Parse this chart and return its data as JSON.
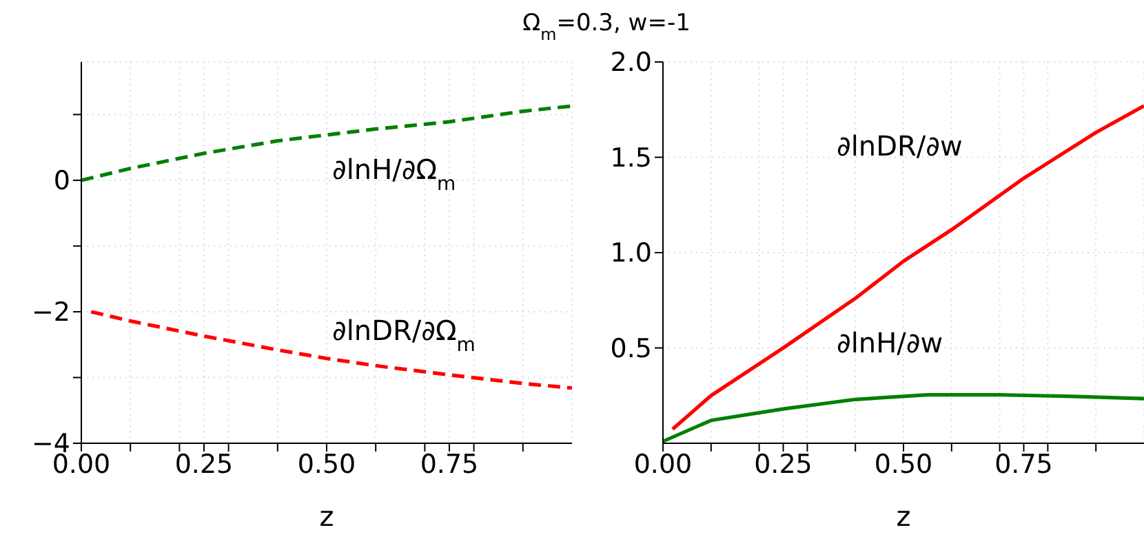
{
  "chart_data": [
    {
      "type": "line",
      "title": "Ω$_{m}$=0.3, w=-1",
      "xlabel": "z",
      "x": [
        0,
        0.1,
        0.25,
        0.4,
        0.5,
        0.6,
        0.75,
        0.9,
        1.0
      ],
      "series": [
        {
          "color": "#008000",
          "line_style": "dashed",
          "values": [
            0,
            0.18,
            0.41,
            0.6,
            0.69,
            0.78,
            0.89,
            1.05,
            1.13
          ]
        },
        {
          "color": "#ff0000",
          "line_style": "dashed",
          "x": [
            0.02,
            0.1,
            0.25,
            0.4,
            0.5,
            0.6,
            0.75,
            0.9,
            1.0
          ],
          "values": [
            -2.0,
            -2.14,
            -2.37,
            -2.58,
            -2.71,
            -2.82,
            -2.96,
            -3.09,
            -3.16
          ]
        }
      ],
      "annotations": [
        "∂lnH/∂Ω$_{m}$",
        "∂lnDR/∂Ω$_{m}$"
      ],
      "xlim": [
        0,
        1
      ],
      "xticks": [
        {
          "value": 0,
          "label": "0.00"
        },
        {
          "value": 0.1,
          "label": null
        },
        {
          "value": 0.2,
          "label": null
        },
        {
          "value": 0.25,
          "label": "0.25"
        },
        {
          "value": 0.3,
          "label": null
        },
        {
          "value": 0.4,
          "label": null
        },
        {
          "value": 0.5,
          "label": "0.50"
        },
        {
          "value": 0.6,
          "label": null
        },
        {
          "value": 0.7,
          "label": null
        },
        {
          "value": 0.75,
          "label": "0.75"
        },
        {
          "value": 0.8,
          "label": null
        },
        {
          "value": 0.9,
          "label": null
        }
      ],
      "ylim": [
        -4,
        1.8
      ],
      "yticks": [
        {
          "value": -4,
          "label": "−4"
        },
        {
          "value": -3,
          "label": null
        },
        {
          "value": -2,
          "label": "−2"
        },
        {
          "value": -1,
          "label": null
        },
        0,
        {
          "value": 1,
          "label": null
        }
      ],
      "grid": true
    },
    {
      "type": "line",
      "xlabel": "z",
      "x": [
        0.02,
        0.1,
        0.25,
        0.4,
        0.5,
        0.6,
        0.75,
        0.9,
        1.0
      ],
      "series": [
        {
          "color": "#ff0000",
          "line_style": "solid",
          "values": [
            0.074,
            0.25,
            0.5,
            0.76,
            0.955,
            1.12,
            1.39,
            1.63,
            1.77
          ]
        },
        {
          "color": "#008000",
          "line_style": "solid",
          "x": [
            0,
            0.1,
            0.25,
            0.4,
            0.55,
            0.7,
            0.85,
            1.0
          ],
          "values": [
            0.01,
            0.12,
            0.18,
            0.23,
            0.254,
            0.254,
            0.246,
            0.234
          ]
        }
      ],
      "annotations": [
        "∂lnDR/∂w",
        "∂lnH/∂w"
      ],
      "xlim": [
        0,
        1
      ],
      "xticks": [
        {
          "value": 0,
          "label": "0.00"
        },
        {
          "value": 0.1,
          "label": null
        },
        {
          "value": 0.2,
          "label": null
        },
        {
          "value": 0.25,
          "label": "0.25"
        },
        {
          "value": 0.3,
          "label": null
        },
        {
          "value": 0.4,
          "label": null
        },
        {
          "value": 0.5,
          "label": "0.50"
        },
        {
          "value": 0.6,
          "label": null
        },
        {
          "value": 0.7,
          "label": null
        },
        {
          "value": 0.75,
          "label": "0.75"
        },
        {
          "value": 0.8,
          "label": null
        },
        {
          "value": 0.9,
          "label": null
        }
      ],
      "ylim": [
        0,
        2
      ],
      "yticks": [
        0.5,
        {
          "value": 1,
          "label": "1.0"
        },
        1.5,
        {
          "value": 2,
          "label": "2.0"
        }
      ],
      "grid": true
    }
  ]
}
